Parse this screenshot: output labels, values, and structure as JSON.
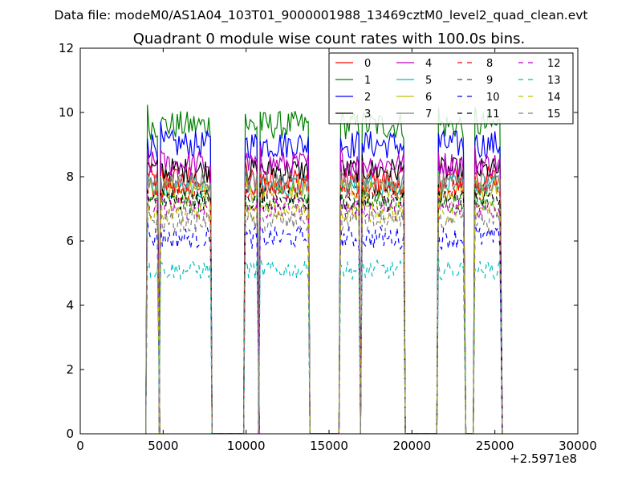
{
  "figure": {
    "suptitle": "Data file: modeM0/AS1A04_103T01_9000001988_13469cztM0_level2_quad_clean.evt"
  },
  "chart_data": {
    "type": "line",
    "title": "Quadrant 0 module wise count rates with 100.0s bins.",
    "xlabel": "",
    "ylabel": "",
    "x_offset_label": "+2.5971e8",
    "xlim": [
      0,
      30000
    ],
    "ylim": [
      0,
      12
    ],
    "x_ticks": [
      0,
      5000,
      10000,
      15000,
      20000,
      25000,
      30000
    ],
    "x_tick_labels": [
      "0",
      "5000",
      "10000",
      "15000",
      "20000",
      "25000",
      "30000"
    ],
    "y_ticks": [
      0,
      2,
      4,
      6,
      8,
      10,
      12
    ],
    "y_tick_labels": [
      "0",
      "2",
      "4",
      "6",
      "8",
      "10",
      "12"
    ],
    "grid": false,
    "legend_placement": "top-right",
    "legend_columns": 4,
    "bin_size_s": 100,
    "segments": [
      [
        4050,
        4700
      ],
      [
        4850,
        7850
      ],
      [
        9950,
        10700
      ],
      [
        10850,
        13750
      ],
      [
        15700,
        16800
      ],
      [
        17000,
        19500
      ],
      [
        21600,
        23150
      ],
      [
        23800,
        25350
      ]
    ],
    "series": [
      {
        "name": "0",
        "color": "#ff0000",
        "dash": "solid",
        "level": 7.9,
        "variation": 0.45
      },
      {
        "name": "1",
        "color": "#008000",
        "dash": "solid",
        "level": 9.6,
        "variation": 0.45
      },
      {
        "name": "2",
        "color": "#0000ff",
        "dash": "solid",
        "level": 9.0,
        "variation": 0.45
      },
      {
        "name": "3",
        "color": "#000000",
        "dash": "solid",
        "level": 8.2,
        "variation": 0.4
      },
      {
        "name": "4",
        "color": "#bf00bf",
        "dash": "solid",
        "level": 8.4,
        "variation": 0.4
      },
      {
        "name": "5",
        "color": "#00bfbf",
        "dash": "solid",
        "level": 7.7,
        "variation": 0.35
      },
      {
        "name": "6",
        "color": "#bfbf00",
        "dash": "solid",
        "level": 7.6,
        "variation": 0.35
      },
      {
        "name": "7",
        "color": "#808080",
        "dash": "solid",
        "level": 7.8,
        "variation": 0.35
      },
      {
        "name": "8",
        "color": "#ff0000",
        "dash": "dashed",
        "level": 7.6,
        "variation": 0.35
      },
      {
        "name": "9",
        "color": "#008000",
        "dash": "dashed",
        "level": 7.2,
        "variation": 0.35
      },
      {
        "name": "10",
        "color": "#0000ff",
        "dash": "dashed",
        "level": 6.1,
        "variation": 0.35
      },
      {
        "name": "11",
        "color": "#000000",
        "dash": "dashed",
        "level": 7.3,
        "variation": 0.35
      },
      {
        "name": "12",
        "color": "#bf00bf",
        "dash": "dashed",
        "level": 7.0,
        "variation": 0.35
      },
      {
        "name": "13",
        "color": "#00bfbf",
        "dash": "dashed",
        "level": 5.1,
        "variation": 0.3
      },
      {
        "name": "14",
        "color": "#bfbf00",
        "dash": "dashed",
        "level": 6.9,
        "variation": 0.35
      },
      {
        "name": "15",
        "color": "#808080",
        "dash": "dashed",
        "level": 6.6,
        "variation": 0.35
      }
    ]
  }
}
